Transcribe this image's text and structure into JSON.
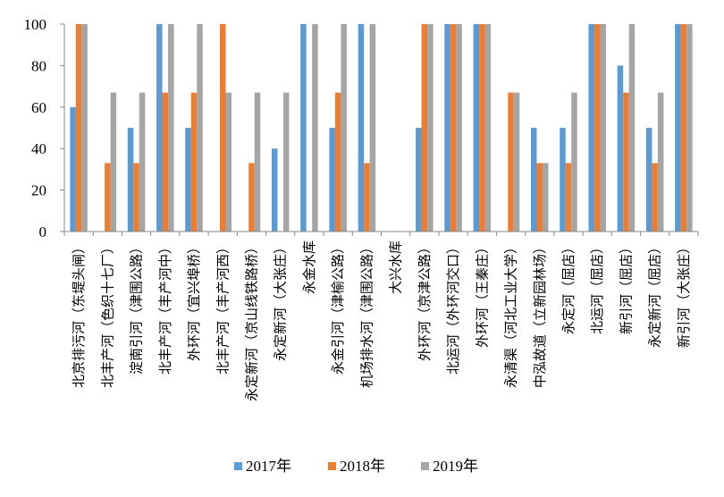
{
  "chart_data": {
    "type": "bar",
    "title": "",
    "xlabel": "",
    "ylabel": "",
    "ylim": [
      0,
      100
    ],
    "yticks": [
      0,
      20,
      40,
      60,
      80,
      100
    ],
    "grid": false,
    "legend_position": "bottom",
    "categories": [
      "北京排污河（东堤头闸）",
      "北丰产河（色织十七厂）",
      "淀南引河（津围公路）",
      "北丰产河（丰产河中）",
      "外环河（宜兴埠桥）",
      "北丰产河（丰产河西）",
      "永定新河（京山线铁路桥）",
      "永定新河（大张庄）",
      "永金水库",
      "永金引河（津榆公路）",
      "机场排水河（津围公路）",
      "大兴水库",
      "外环河（京津公路）",
      "北运河（外环河交口）",
      "外环河（王秦庄）",
      "永清渠（河北工业大学）",
      "中泓故道（立新园林场）",
      "永定河（屈店）",
      "北运河（屈店）",
      "新引河（屈店）",
      "永定新河（屈店）",
      "新引河（大张庄）"
    ],
    "series": [
      {
        "name": "2017年",
        "color": "#5b9bd5",
        "values": [
          60,
          0,
          50,
          100,
          50,
          0,
          0,
          40,
          100,
          50,
          100,
          0,
          50,
          100,
          100,
          0,
          50,
          50,
          100,
          80,
          50,
          100
        ]
      },
      {
        "name": "2018年",
        "color": "#ed7d31",
        "values": [
          100,
          33,
          33,
          67,
          67,
          100,
          33,
          0,
          0,
          67,
          33,
          0,
          100,
          100,
          100,
          67,
          33,
          33,
          100,
          67,
          33,
          100
        ]
      },
      {
        "name": "2019年",
        "color": "#a5a5a5",
        "values": [
          100,
          67,
          67,
          100,
          100,
          67,
          67,
          67,
          100,
          100,
          100,
          0,
          100,
          100,
          100,
          67,
          33,
          67,
          100,
          100,
          67,
          100
        ]
      }
    ]
  }
}
